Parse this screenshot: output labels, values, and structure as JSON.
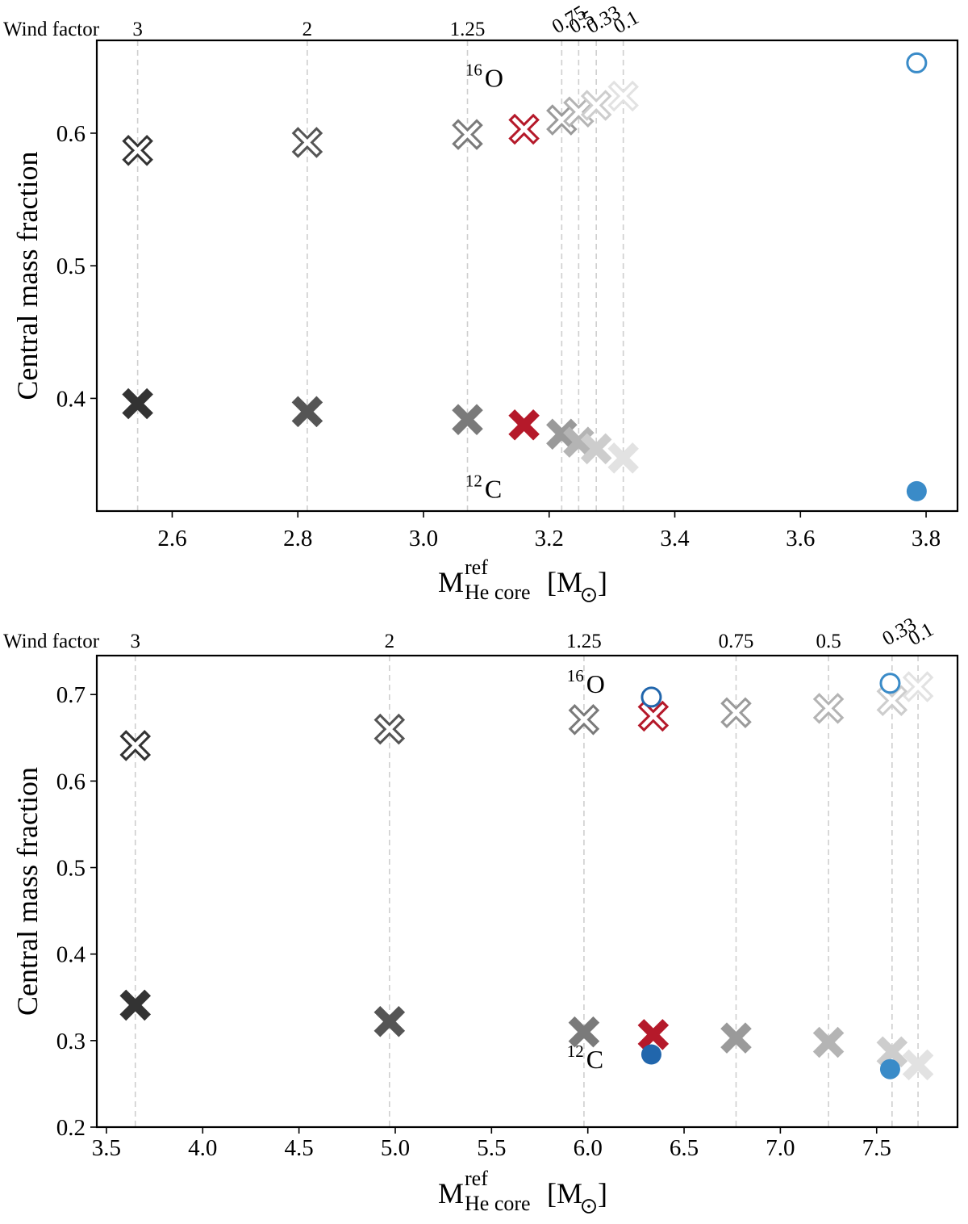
{
  "colors": {
    "red": "#b5192a",
    "blue_light": "#3a8bc8",
    "blue_dark": "#2166ac",
    "grey_levels": [
      "#333333",
      "#555555",
      "#7a7a7a",
      "#9a9a9a",
      "#b4b4b4",
      "#cdcdcd",
      "#e2e2e2"
    ]
  },
  "legend": {
    "top_axis_title": "Wind factor"
  },
  "chart_data": [
    {
      "type": "scatter",
      "ylabel": "Central mass fraction",
      "xlabel": "M",
      "xlabel_sup": "ref",
      "xlabel_sub": "He core",
      "xlabel_unit_open": "[M",
      "xlabel_unit_close": "]",
      "xlim": [
        2.48,
        3.85
      ],
      "ylim": [
        0.315,
        0.67
      ],
      "xticks": [
        2.6,
        2.8,
        3.0,
        3.2,
        3.4,
        3.6,
        3.8
      ],
      "xticklabels": [
        "2.6",
        "2.8",
        "3.0",
        "3.2",
        "3.4",
        "3.6",
        "3.8"
      ],
      "yticks": [
        0.4,
        0.5,
        0.6
      ],
      "yticklabels": [
        "0.4",
        "0.5",
        "0.6"
      ],
      "top_ticks": [
        {
          "x": 2.545,
          "label": "3",
          "rotated": false
        },
        {
          "x": 2.815,
          "label": "2",
          "rotated": false
        },
        {
          "x": 3.07,
          "label": "1.25",
          "rotated": false
        },
        {
          "x": 3.22,
          "label": "0.75",
          "rotated": true
        },
        {
          "x": 3.247,
          "label": "0.5",
          "rotated": true
        },
        {
          "x": 3.275,
          "label": "0.33",
          "rotated": true
        },
        {
          "x": 3.318,
          "label": "0.1",
          "rotated": true
        }
      ],
      "annotations": [
        {
          "text_sup": "16",
          "text": "O",
          "x": 3.1,
          "y": 0.635
        },
        {
          "text_sup": "12",
          "text": "C",
          "x": 3.1,
          "y": 0.325
        }
      ],
      "series": [
        {
          "marker": "x",
          "points": [
            {
              "x": 2.545,
              "o16": 0.587,
              "c12": 0.396,
              "color": "#333333"
            },
            {
              "x": 2.815,
              "o16": 0.593,
              "c12": 0.39,
              "color": "#555555"
            },
            {
              "x": 3.07,
              "o16": 0.599,
              "c12": 0.384,
              "color": "#7a7a7a"
            },
            {
              "x": 3.16,
              "o16": 0.603,
              "c12": 0.38,
              "color": "#b5192a"
            },
            {
              "x": 3.22,
              "o16": 0.61,
              "c12": 0.373,
              "color": "#9a9a9a"
            },
            {
              "x": 3.247,
              "o16": 0.616,
              "c12": 0.367,
              "color": "#b4b4b4"
            },
            {
              "x": 3.275,
              "o16": 0.621,
              "c12": 0.362,
              "color": "#cdcdcd"
            },
            {
              "x": 3.318,
              "o16": 0.628,
              "c12": 0.355,
              "color": "#e2e2e2"
            }
          ]
        },
        {
          "marker": "circle",
          "points": [
            {
              "x": 3.785,
              "o16": 0.653,
              "c12": 0.33,
              "color": "#3a8bc8"
            }
          ]
        }
      ]
    },
    {
      "type": "scatter",
      "ylabel": "Central mass fraction",
      "xlabel": "M",
      "xlabel_sup": "ref",
      "xlabel_sub": "He core",
      "xlabel_unit_open": "[M",
      "xlabel_unit_close": "]",
      "xlim": [
        3.45,
        7.92
      ],
      "ylim": [
        0.2,
        0.745
      ],
      "xticks": [
        3.5,
        4.0,
        4.5,
        5.0,
        5.5,
        6.0,
        6.5,
        7.0,
        7.5
      ],
      "xticklabels": [
        "3.5",
        "4.0",
        "4.5",
        "5.0",
        "5.5",
        "6.0",
        "6.5",
        "7.0",
        "7.5"
      ],
      "yticks": [
        0.2,
        0.3,
        0.4,
        0.5,
        0.6,
        0.7
      ],
      "yticklabels": [
        "0.2",
        "0.3",
        "0.4",
        "0.5",
        "0.6",
        "0.7"
      ],
      "top_ticks": [
        {
          "x": 3.65,
          "label": "3",
          "rotated": false
        },
        {
          "x": 4.97,
          "label": "2",
          "rotated": false
        },
        {
          "x": 5.98,
          "label": "1.25",
          "rotated": false
        },
        {
          "x": 6.77,
          "label": "0.75",
          "rotated": false
        },
        {
          "x": 7.25,
          "label": "0.5",
          "rotated": false
        },
        {
          "x": 7.58,
          "label": "0.33",
          "rotated": true
        },
        {
          "x": 7.715,
          "label": "0.1",
          "rotated": true
        }
      ],
      "annotations": [
        {
          "text_sup": "16",
          "text": "O",
          "x": 6.0,
          "y": 0.702
        },
        {
          "text_sup": "12",
          "text": "C",
          "x": 6.0,
          "y": 0.268
        }
      ],
      "series": [
        {
          "marker": "x",
          "points": [
            {
              "x": 3.65,
              "o16": 0.641,
              "c12": 0.341,
              "color": "#333333"
            },
            {
              "x": 4.97,
              "o16": 0.66,
              "c12": 0.322,
              "color": "#555555"
            },
            {
              "x": 5.98,
              "o16": 0.671,
              "c12": 0.31,
              "color": "#7a7a7a"
            },
            {
              "x": 6.34,
              "o16": 0.675,
              "c12": 0.307,
              "color": "#b5192a"
            },
            {
              "x": 6.77,
              "o16": 0.679,
              "c12": 0.303,
              "color": "#9a9a9a"
            },
            {
              "x": 7.25,
              "o16": 0.684,
              "c12": 0.298,
              "color": "#b4b4b4"
            },
            {
              "x": 7.58,
              "o16": 0.693,
              "c12": 0.287,
              "color": "#cdcdcd"
            },
            {
              "x": 7.715,
              "o16": 0.709,
              "c12": 0.272,
              "color": "#e2e2e2"
            }
          ]
        },
        {
          "marker": "circle",
          "points": [
            {
              "x": 6.33,
              "o16": 0.697,
              "c12": 0.284,
              "color": "#2166ac"
            },
            {
              "x": 7.57,
              "o16": 0.713,
              "c12": 0.267,
              "color": "#3a8bc8"
            }
          ]
        }
      ]
    }
  ]
}
